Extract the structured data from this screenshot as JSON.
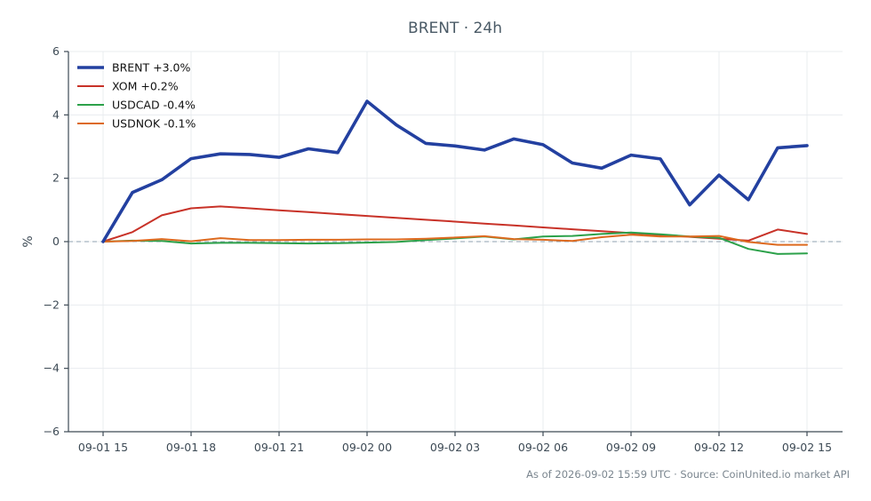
{
  "chart_data": {
    "type": "line",
    "title": "BRENT · 24h",
    "ylabel": "%",
    "xlabel": "",
    "ylim": [
      -6,
      6
    ],
    "yticks": [
      {
        "value": 6,
        "label": "6"
      },
      {
        "value": 4,
        "label": "4"
      },
      {
        "value": 2,
        "label": "2"
      },
      {
        "value": 0,
        "label": "0"
      },
      {
        "value": -2,
        "label": "−2"
      },
      {
        "value": -4,
        "label": "−4"
      },
      {
        "value": -6,
        "label": "−6"
      }
    ],
    "x": [
      "09-01 15",
      "09-01 16",
      "09-01 17",
      "09-01 18",
      "09-01 19",
      "09-01 20",
      "09-01 21",
      "09-01 22",
      "09-01 23",
      "09-02 00",
      "09-02 01",
      "09-02 02",
      "09-02 03",
      "09-02 04",
      "09-02 05",
      "09-02 06",
      "09-02 07",
      "09-02 08",
      "09-02 09",
      "09-02 10",
      "09-02 11",
      "09-02 12",
      "09-02 13",
      "09-02 14",
      "09-02 15"
    ],
    "xticks": [
      "09-01 15",
      "09-01 18",
      "09-01 21",
      "09-02 00",
      "09-02 03",
      "09-02 06",
      "09-02 09",
      "09-02 12",
      "09-02 15"
    ],
    "grid": true,
    "baseline": 0,
    "legend_position": "top-left",
    "series": [
      {
        "name": "BRENT +3.0%",
        "color": "#2340a0",
        "width": 3.6,
        "values": [
          0.0,
          1.55,
          1.95,
          2.62,
          2.77,
          2.75,
          2.66,
          2.93,
          2.81,
          4.43,
          3.68,
          3.1,
          3.02,
          2.89,
          3.24,
          3.06,
          2.48,
          2.32,
          2.73,
          2.61,
          1.16,
          2.1,
          1.32,
          2.96,
          3.03
        ]
      },
      {
        "name": "XOM +0.2%",
        "color": "#c83228",
        "width": 2,
        "values": [
          0.0,
          0.3,
          0.83,
          1.05,
          1.11,
          1.05,
          0.99,
          0.93,
          0.87,
          0.81,
          0.75,
          0.69,
          0.63,
          0.57,
          0.51,
          0.45,
          0.39,
          0.33,
          0.27,
          0.21,
          0.15,
          0.09,
          0.03,
          0.38,
          0.24
        ]
      },
      {
        "name": "USDCAD -0.4%",
        "color": "#2ca14a",
        "width": 2,
        "values": [
          0.0,
          0.03,
          0.02,
          -0.06,
          -0.04,
          -0.04,
          -0.05,
          -0.06,
          -0.05,
          -0.03,
          -0.01,
          0.05,
          0.1,
          0.16,
          0.07,
          0.16,
          0.18,
          0.24,
          0.29,
          0.23,
          0.16,
          0.12,
          -0.23,
          -0.39,
          -0.37
        ]
      },
      {
        "name": "USDNOK -0.1%",
        "color": "#dd6a1f",
        "width": 2,
        "values": [
          0.0,
          0.02,
          0.08,
          0.01,
          0.11,
          0.05,
          0.05,
          0.06,
          0.06,
          0.07,
          0.07,
          0.09,
          0.13,
          0.17,
          0.08,
          0.06,
          0.02,
          0.14,
          0.22,
          0.16,
          0.16,
          0.18,
          -0.01,
          -0.1,
          -0.1
        ]
      }
    ],
    "footer": "As of 2026-09-02 15:59 UTC · Source: CoinUnited.io market API"
  }
}
